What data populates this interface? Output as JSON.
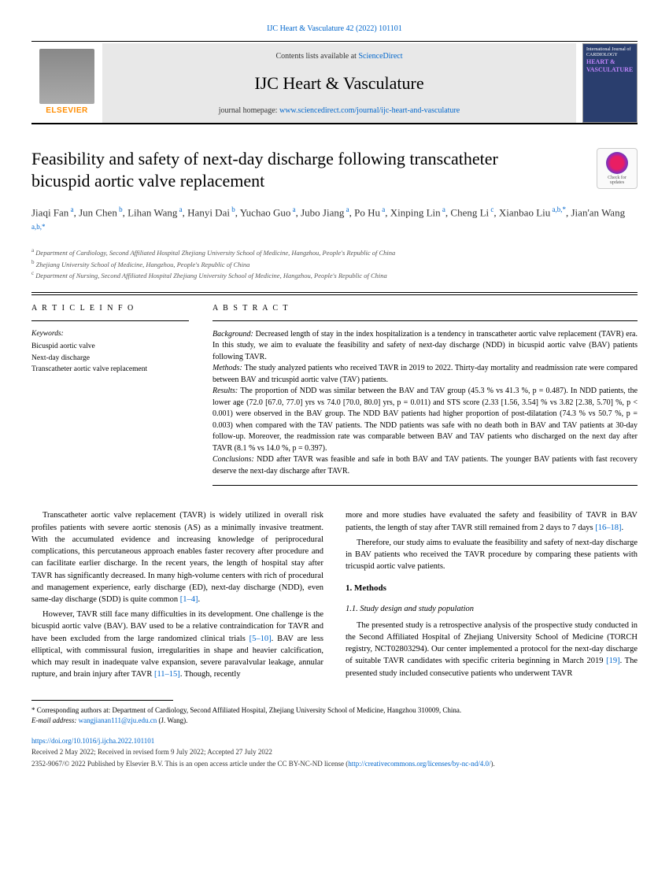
{
  "header": {
    "citation": "IJC Heart & Vasculature 42 (2022) 101101",
    "contents_prefix": "Contents lists available at ",
    "contents_link": "ScienceDirect",
    "journal_name": "IJC Heart & Vasculature",
    "homepage_prefix": "journal homepage: ",
    "homepage_url": "www.sciencedirect.com/journal/ijc-heart-and-vasculature",
    "elsevier": "ELSEVIER",
    "cover_top": "International Journal of",
    "cover_line1": "CARDIOLOGY",
    "cover_line2": "HEART &",
    "cover_line3": "VASCULATURE",
    "updates": "Check for updates"
  },
  "title": "Feasibility and safety of next-day discharge following transcatheter bicuspid aortic valve replacement",
  "authors_html": "Jiaqi Fan<sup> a</sup>, Jun Chen<sup> b</sup>, Lihan Wang<sup> a</sup>, Hanyi Dai<sup> b</sup>, Yuchao Guo<sup> a</sup>, Jubo Jiang<sup> a</sup>, Po Hu<sup> a</sup>, Xinping Lin<sup> a</sup>, Cheng Li<sup> c</sup>, Xianbao Liu<sup> a,b,*</sup>, Jian'an Wang<sup> a,b,*</sup>",
  "affiliations": {
    "a": "Department of Cardiology, Second Affiliated Hospital Zhejiang University School of Medicine, Hangzhou, People's Republic of China",
    "b": "Zhejiang University School of Medicine, Hangzhou, People's Republic of China",
    "c": "Department of Nursing, Second Affiliated Hospital Zhejiang University School of Medicine, Hangzhou, People's Republic of China"
  },
  "info_head": "A R T I C L E   I N F O",
  "abstract_head": "A B S T R A C T",
  "keywords_label": "Keywords:",
  "keywords": [
    "Bicuspid aortic valve",
    "Next-day discharge",
    "Transcatheter aortic valve replacement"
  ],
  "abstract": {
    "background": "Decreased length of stay in the index hospitalization is a tendency in transcatheter aortic valve replacement (TAVR) era. In this study, we aim to evaluate the feasibility and safety of next-day discharge (NDD) in bicuspid aortic valve (BAV) patients following TAVR.",
    "methods": "The study analyzed patients who received TAVR in 2019 to 2022. Thirty-day mortality and readmission rate were compared between BAV and tricuspid aortic valve (TAV) patients.",
    "results": "The proportion of NDD was similar between the BAV and TAV group (45.3 % vs 41.3 %, p = 0.487). In NDD patients, the lower age (72.0 [67.0, 77.0] yrs vs 74.0 [70.0, 80.0] yrs, p = 0.011) and STS score (2.33 [1.56, 3.54] % vs 3.82 [2.38, 5.70] %, p < 0.001) were observed in the BAV group. The NDD BAV patients had higher proportion of post-dilatation (74.3 % vs 50.7 %, p = 0.003) when compared with the TAV patients. The NDD patients was safe with no death both in BAV and TAV patients at 30-day follow-up. Moreover, the readmission rate was comparable between BAV and TAV patients who discharged on the next day after TAVR (8.1 % vs 14.0 %, p = 0.397).",
    "conclusions": "NDD after TAVR was feasible and safe in both BAV and TAV patients. The younger BAV patients with fast recovery deserve the next-day discharge after TAVR."
  },
  "body": {
    "left_p1": "Transcatheter aortic valve replacement (TAVR) is widely utilized in overall risk profiles patients with severe aortic stenosis (AS) as a minimally invasive treatment. With the accumulated evidence and increasing knowledge of periprocedural complications, this percutaneous approach enables faster recovery after procedure and can facilitate earlier discharge. In the recent years, the length of hospital stay after TAVR has significantly decreased. In many high-volume centers with rich of procedural and management experience, early discharge (ED), next-day discharge (NDD), even same-day discharge (SDD) is quite common ",
    "left_ref1": "[1–4]",
    "left_p2a": "However, TAVR still face many difficulties in its development. One challenge is the bicuspid aortic valve (BAV). BAV used to be a relative contraindication for TAVR and have been excluded from the large randomized clinical trials ",
    "left_ref2": "[5–10]",
    "left_p2b": ". BAV are less elliptical, with commissural fusion, irregularities in shape and heavier calcification, which may result in inadequate valve expansion, severe paravalvular leakage, annular rupture, and brain injury after TAVR ",
    "left_ref3": "[11–15]",
    "left_p2c": ". Though, recently",
    "right_p1a": "more and more studies have evaluated the safety and feasibility of TAVR in BAV patients, the length of stay after TAVR still remained from 2 days to 7 days ",
    "right_ref1": "[16–18]",
    "right_p2": "Therefore, our study aims to evaluate the feasibility and safety of next-day discharge in BAV patients who received the TAVR procedure by comparing these patients with tricuspid aortic valve patients.",
    "methods_head": "1.  Methods",
    "sub_head": "1.1.  Study design and study population",
    "right_p3a": "The presented study is a retrospective analysis of the prospective study conducted in the Second Affiliated Hospital of Zhejiang University School of Medicine (TORCH registry, NCT02803294). Our center implemented a protocol for the next-day discharge of suitable TAVR candidates with specific criteria beginning in March 2019 ",
    "right_ref2": "[19]",
    "right_p3b": ". The presented study included consecutive patients who underwent TAVR"
  },
  "footer": {
    "corr": "* Corresponding authors at: Department of Cardiology, Second Affiliated Hospital, Zhejiang University School of Medicine, Hangzhou 310009, China.",
    "email_label": "E-mail address: ",
    "email": "wangjianan111@zju.edu.cn",
    "email_suffix": " (J. Wang).",
    "doi": "https://doi.org/10.1016/j.ijcha.2022.101101",
    "received": "Received 2 May 2022; Received in revised form 9 July 2022; Accepted 27 July 2022",
    "copyright_a": "2352-9067/© 2022 Published by Elsevier B.V. This is an open access article under the CC BY-NC-ND license (",
    "copyright_link": "http://creativecommons.org/licenses/by-nc-nd/4.0/",
    "copyright_b": ")."
  },
  "colors": {
    "link": "#0066cc",
    "elsevier_orange": "#ff8c00",
    "banner_bg": "#e8e8e8"
  }
}
